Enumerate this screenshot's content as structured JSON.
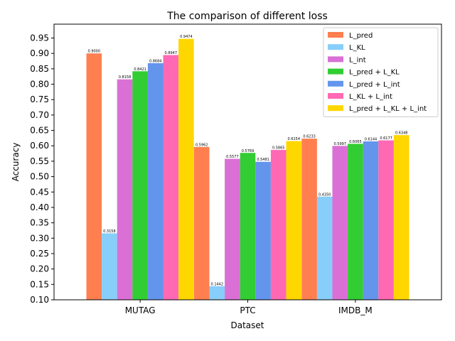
{
  "chart_data": {
    "type": "bar",
    "title": "The comparison of different loss",
    "xlabel": "Dataset",
    "ylabel": "Accuracy",
    "ylim": [
      0.1,
      0.995
    ],
    "yticks": [
      "0.10",
      "0.15",
      "0.20",
      "0.25",
      "0.30",
      "0.35",
      "0.40",
      "0.45",
      "0.50",
      "0.55",
      "0.60",
      "0.65",
      "0.70",
      "0.75",
      "0.80",
      "0.85",
      "0.90",
      "0.95"
    ],
    "categories": [
      "MUTAG",
      "PTC",
      "IMDB_M"
    ],
    "legend_position": "top-right",
    "grid": false,
    "series": [
      {
        "name": "L_pred",
        "color": "#FF7F50",
        "values": [
          0.9,
          0.5962,
          0.6233
        ],
        "labels": [
          "0.9000",
          "0.5962",
          "0.6233"
        ]
      },
      {
        "name": "L_KL",
        "color": "#87CEFA",
        "values": [
          0.3158,
          0.1442,
          0.435
        ],
        "labels": [
          "0.3158",
          "0.1442",
          "0.4350"
        ]
      },
      {
        "name": "L_int",
        "color": "#DA70D6",
        "values": [
          0.8158,
          0.5577,
          0.5997
        ],
        "labels": [
          "0.8158",
          "0.5577",
          "0.5997"
        ]
      },
      {
        "name": "L_pred + L_KL",
        "color": "#32CD32",
        "values": [
          0.8421,
          0.5769,
          0.6065
        ],
        "labels": [
          "0.8421",
          "0.5769",
          "0.6065"
        ]
      },
      {
        "name": "L_pred + L_int",
        "color": "#6495ED",
        "values": [
          0.8684,
          0.5481,
          0.6144
        ],
        "labels": [
          "0.8684",
          "0.5481",
          "0.6144"
        ]
      },
      {
        "name": "L_KL + L_int",
        "color": "#FF69B4",
        "values": [
          0.8947,
          0.5865,
          0.6177
        ],
        "labels": [
          "0.8947",
          "0.5865",
          "0.6177"
        ]
      },
      {
        "name": "L_pred + L_KL + L_int",
        "color": "#FFD700",
        "values": [
          0.9474,
          0.6154,
          0.6348
        ],
        "labels": [
          "0.9474",
          "0.6154",
          "0.6348"
        ]
      }
    ]
  }
}
